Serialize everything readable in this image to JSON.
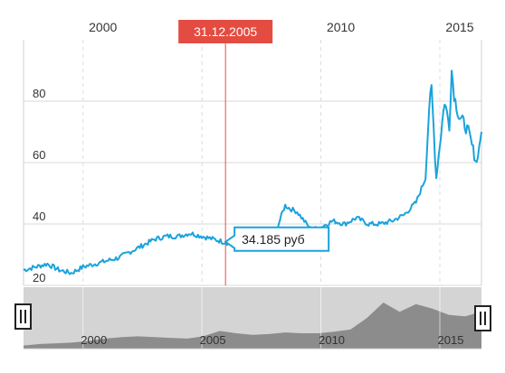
{
  "chart_data": {
    "type": "line",
    "title": "",
    "xlabel": "",
    "ylabel": "",
    "x_ticks": [
      "2000",
      "2005",
      "2010",
      "2015"
    ],
    "y_ticks": [
      "20",
      "40",
      "60",
      "80"
    ],
    "xlim": [
      1997.5,
      2016.75
    ],
    "ylim": [
      20,
      100
    ],
    "grid": true,
    "series": [
      {
        "name": "",
        "color": "#1aa3dc",
        "x": [
          1997.5,
          1998.0,
          1998.5,
          1999.0,
          1999.5,
          2000.0,
          2000.5,
          2001.0,
          2001.5,
          2002.0,
          2002.5,
          2003.0,
          2003.5,
          2004.0,
          2004.5,
          2005.0,
          2005.5,
          2006.0,
          2006.5,
          2007.0,
          2007.5,
          2008.0,
          2008.4,
          2008.5,
          2008.7,
          2009.0,
          2009.3,
          2009.6,
          2010.0,
          2010.5,
          2011.0,
          2011.5,
          2012.0,
          2012.5,
          2013.0,
          2013.5,
          2014.0,
          2014.4,
          2014.55,
          2014.65,
          2014.75,
          2014.85,
          2015.0,
          2015.2,
          2015.4,
          2015.5,
          2015.6,
          2015.8,
          2016.0,
          2016.2,
          2016.4,
          2016.55,
          2016.75
        ],
        "values": [
          25,
          26,
          27,
          25,
          24,
          26,
          27,
          28,
          29,
          31,
          33,
          35,
          36,
          36,
          37,
          36,
          35,
          34,
          33,
          33,
          33,
          35,
          44,
          46,
          45,
          44,
          41,
          38,
          39,
          41,
          40,
          42,
          40,
          40,
          41,
          43,
          47,
          55,
          78,
          84,
          70,
          55,
          66,
          80,
          72,
          90,
          82,
          75,
          73,
          70,
          64,
          60,
          70
        ]
      }
    ],
    "navigator": {
      "x_ticks": [
        "2000",
        "2005",
        "2010",
        "2015"
      ],
      "values": [
        24,
        26,
        27,
        28,
        30,
        33,
        35,
        36,
        35,
        34,
        33,
        36,
        43,
        40,
        38,
        39,
        41,
        40,
        40,
        42,
        45,
        60,
        80,
        68,
        78,
        72,
        64,
        62,
        68
      ]
    },
    "crosshair": {
      "date_label": "31.12.2005",
      "value_label": "34.185 руб",
      "x": 2005.99,
      "y": 34.185
    },
    "colors": {
      "line": "#1aa3dc",
      "crosshair": "#e44c41",
      "date_badge": "#e44c41",
      "grid": "#d9d9d9",
      "navigator_bg": "#d4d4d4",
      "navigator_area": "#8c8c8c"
    }
  }
}
